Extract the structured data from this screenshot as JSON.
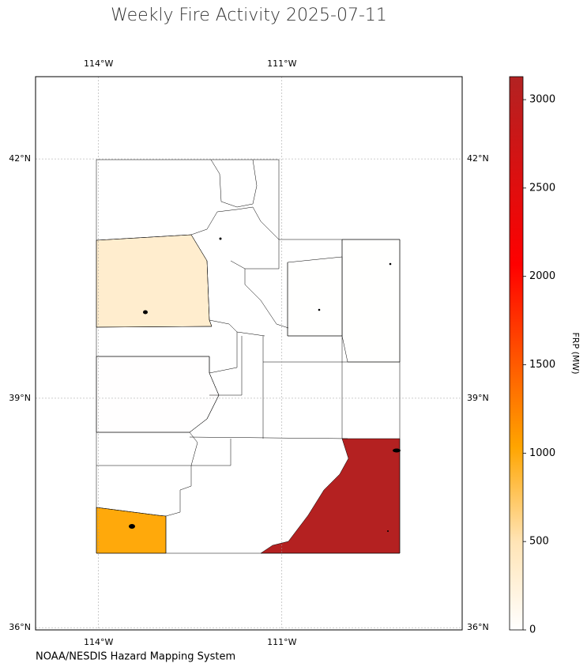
{
  "map": {
    "title": "Weekly Fire Activity 2025-07-11",
    "source": "NOAA/NESDIS Hazard Mapping System",
    "lonlim": [
      -115.03,
      -108.05
    ],
    "latlim": [
      35.97,
      43.0
    ],
    "lonticks": [
      {
        "value": -114,
        "label": "114°W"
      },
      {
        "value": -111,
        "label": "111°W"
      }
    ],
    "latticks": [
      {
        "value": 36,
        "label": "36°N"
      },
      {
        "value": 39,
        "label": "39°N"
      },
      {
        "value": 42,
        "label": "42°N"
      }
    ],
    "grid": true,
    "colorbar": {
      "label": "FRP (MW)",
      "lim": [
        0,
        3130
      ],
      "ticks": [
        0,
        500,
        1000,
        1500,
        2000,
        2500,
        3000
      ]
    },
    "regions": {
      "values": [
        3100,
        1000,
        330,
        10,
        5,
        5
      ]
    }
  }
}
